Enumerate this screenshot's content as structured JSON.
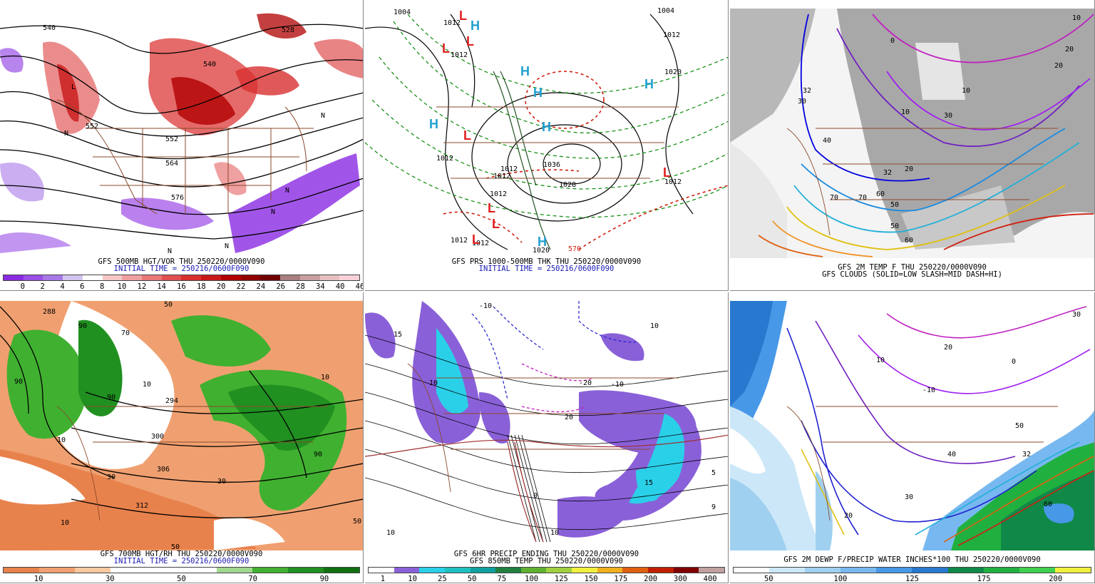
{
  "panels": [
    {
      "id": "p1",
      "caption1": "GFS 500MB HGT/VOR THU 250220/0000V090",
      "caption2": "INITIAL TIME = 250216/0600F090",
      "colorbar": [
        "#8a2be2",
        "#9a50e6",
        "#a878e8",
        "#d4c4f0",
        "#ffffff",
        "#f4c8c8",
        "#f0a0a0",
        "#e87878",
        "#e05050",
        "#d83030",
        "#c81818",
        "#b00000",
        "#900000",
        "#700000",
        "#a88080",
        "#c8a0a0",
        "#e8c0c0",
        "#f8d0d8"
      ],
      "colorbar_labels": [
        "0",
        "2",
        "4",
        "6",
        "8",
        "10",
        "12",
        "14",
        "16",
        "18",
        "20",
        "22",
        "24",
        "26",
        "28",
        "34",
        "40",
        "46"
      ],
      "map_labels": [
        "540",
        "540",
        "528",
        "552",
        "564",
        "576",
        "552"
      ],
      "symbols": [
        "N",
        "N",
        "N",
        "N",
        "N",
        "N",
        "L"
      ]
    },
    {
      "id": "p2",
      "caption1": "GFS PRS 1000-500MB THK THU 250220/0000V090",
      "caption2": "INITIAL TIME = 250216/0600F090",
      "map_labels": [
        "1004",
        "1012",
        "1012",
        "1012",
        "1012",
        "1012",
        "1012",
        "1036",
        "1028",
        "1020",
        "1012",
        "1012",
        "1020",
        "1004",
        "570",
        "1012",
        "1012"
      ],
      "symbols": [
        "L",
        "H",
        "L",
        "L",
        "H",
        "H",
        "H",
        "L",
        "H",
        "L",
        "L",
        "H",
        "L",
        "H",
        "L"
      ]
    },
    {
      "id": "p3",
      "caption1": "GFS 2M TEMP F THU 250220/0000V090",
      "caption2": "GFS CLOUDS (SOLID=LOW SLASH=MID DASH=HI)",
      "map_labels": [
        "10",
        "20",
        "30",
        "40",
        "32",
        "50",
        "60",
        "70",
        "30",
        "20",
        "10",
        "0",
        "10",
        "20",
        "32",
        "50",
        "60",
        "70"
      ]
    },
    {
      "id": "p4",
      "caption1": "GFS 700MB HGT/RH THU 250220/0000V090",
      "caption2": "INITIAL TIME = 250216/0600F090",
      "colorbar": [
        "#e8824c",
        "#f0a070",
        "#f8c8a0",
        "#ffffff",
        "#ffffff",
        "#ffffff",
        "#a0d890",
        "#40b030",
        "#209020",
        "#107010"
      ],
      "colorbar_labels": [
        "10",
        "30",
        "50",
        "70",
        "90"
      ],
      "map_labels": [
        "288",
        "294",
        "300",
        "306",
        "312",
        "90",
        "90",
        "90",
        "70",
        "50",
        "30",
        "10",
        "10",
        "10",
        "50",
        "50",
        "30",
        "10",
        "90"
      ]
    },
    {
      "id": "p5",
      "caption1": "GFS 6HR PRECIP ENDING THU 250220/0000V090",
      "caption2": "GFS 850MB TEMP THU 250220/0000V090",
      "colorbar": [
        "#ffffff",
        "#8a60d8",
        "#2ad0e8",
        "#20c0c0",
        "#10a0a0",
        "#208040",
        "#60b030",
        "#a0d040",
        "#f0f040",
        "#f0b020",
        "#e06010",
        "#c02000",
        "#800000",
        "#c0a0a0"
      ],
      "colorbar_labels": [
        "1",
        "10",
        "25",
        "50",
        "75",
        "100",
        "125",
        "150",
        "175",
        "200",
        "300",
        "400"
      ],
      "map_labels": [
        "-10",
        "10",
        "15",
        "10",
        "0",
        "-10",
        "-20",
        "20",
        "10",
        "9",
        "15",
        "10",
        "5"
      ]
    },
    {
      "id": "p6",
      "caption1": "GFS 2M DEWP F/PRECIP WATER INCHES*100 THU 250220/0000V090",
      "caption2": "",
      "colorbar": [
        "#ffffff",
        "#cce8f8",
        "#a0d0f0",
        "#78b8f0",
        "#4898e8",
        "#2878d0",
        "#108848",
        "#20b040",
        "#40d050",
        "#f0f040"
      ],
      "colorbar_labels": [
        "50",
        "100",
        "125",
        "175",
        "200"
      ],
      "map_labels": [
        "30",
        "20",
        "10",
        "0",
        "-10",
        "40",
        "50",
        "32",
        "20",
        "30",
        "60"
      ]
    }
  ]
}
